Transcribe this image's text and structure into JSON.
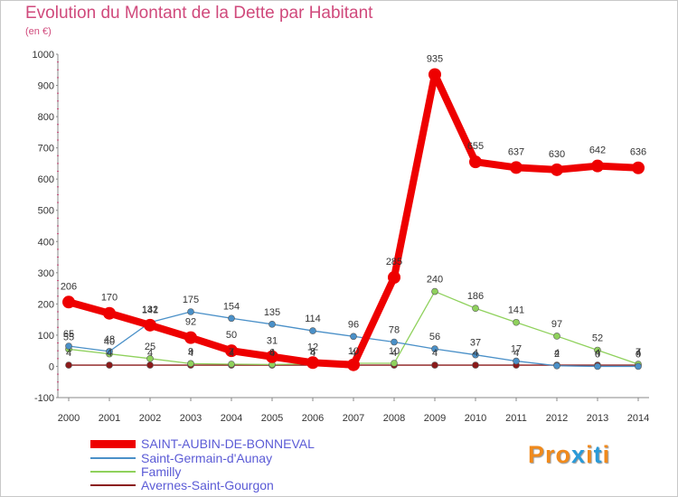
{
  "title": "Evolution du Montant de la Dette par Habitant",
  "unit": "(en €)",
  "logo": {
    "text": "Proxiti",
    "colors": [
      "#f08a1c",
      "#f08a1c",
      "#f08a1c",
      "#2a9ad8",
      "#f08a1c",
      "#2a9ad8",
      "#f08a1c"
    ]
  },
  "chart_data": {
    "type": "line",
    "title": "Evolution du Montant de la Dette par Habitant",
    "ylabel": "(en €)",
    "xlabel": "",
    "ylim": [
      -100,
      1000
    ],
    "yticks": [
      -100,
      0,
      100,
      200,
      300,
      400,
      500,
      600,
      700,
      800,
      900,
      1000
    ],
    "categories": [
      "2000",
      "2001",
      "2002",
      "2003",
      "2004",
      "2005",
      "2006",
      "2007",
      "2008",
      "2009",
      "2010",
      "2011",
      "2012",
      "2013",
      "2014"
    ],
    "grid": false,
    "legend_position": "bottom-left",
    "series": [
      {
        "name": "SAINT-AUBIN-DE-BONNEVAL",
        "color": "#ee0000",
        "values": [
          206,
          170,
          132,
          92,
          50,
          31,
          12,
          5,
          285,
          935,
          655,
          637,
          630,
          642,
          636
        ],
        "labels": [
          "206",
          "170",
          "132",
          "92",
          "50",
          "31",
          "12",
          "",
          "285",
          "935",
          "655",
          "637",
          "630",
          "642",
          "636"
        ]
      },
      {
        "name": "Saint-Germain-d'Aunay",
        "color": "#4a90c8",
        "values": [
          65,
          48,
          141,
          175,
          154,
          135,
          114,
          96,
          78,
          56,
          37,
          17,
          2,
          0,
          0
        ],
        "labels": [
          "65",
          "48",
          "141",
          "175",
          "154",
          "135",
          "114",
          "96",
          "78",
          "56",
          "37",
          "17",
          "2",
          "0",
          "0"
        ]
      },
      {
        "name": "Familly",
        "color": "#8fd15c",
        "values": [
          55,
          40,
          25,
          9,
          7,
          6,
          8,
          10,
          10,
          240,
          186,
          141,
          97,
          52,
          7
        ],
        "labels": [
          "55",
          "40",
          "25",
          "9",
          "7",
          "6",
          "8",
          "10",
          "10",
          "240",
          "186",
          "141",
          "97",
          "52",
          "7"
        ]
      },
      {
        "name": "Avernes-Saint-Gourgon",
        "color": "#8b1a1a",
        "values": [
          4,
          4,
          4,
          4,
          4,
          4,
          4,
          4,
          4,
          4,
          4,
          4,
          4,
          4,
          4
        ],
        "labels": [
          "4",
          "4",
          "4",
          "4",
          "4",
          "4",
          "4",
          "4",
          "4",
          "4",
          "4",
          "4",
          "4",
          "4",
          "4"
        ]
      }
    ]
  }
}
